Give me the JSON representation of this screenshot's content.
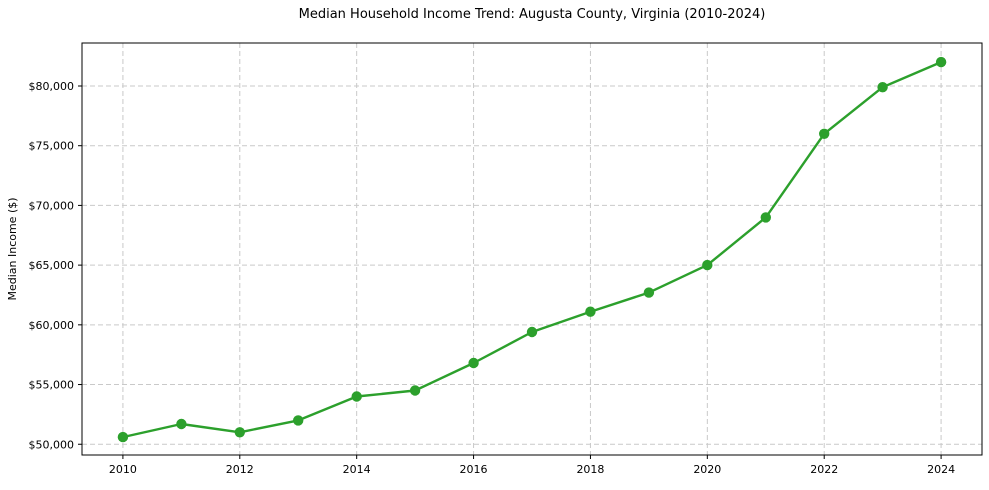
{
  "figure": {
    "background_color": "#ffffff"
  },
  "chart_data": {
    "type": "line",
    "title": "Median Household Income Trend: Augusta County, Virginia (2010-2024)",
    "xlabel": "",
    "ylabel": "Median Income ($)",
    "x": [
      2010,
      2011,
      2012,
      2013,
      2014,
      2015,
      2016,
      2017,
      2018,
      2019,
      2020,
      2021,
      2022,
      2023,
      2024
    ],
    "y": [
      50600,
      51700,
      51000,
      52000,
      54000,
      54500,
      56800,
      59400,
      61100,
      62700,
      65000,
      69000,
      76000,
      79900,
      82000
    ],
    "xlim": [
      2009.3,
      2024.7
    ],
    "ylim": [
      49100,
      83600
    ],
    "xticks": {
      "values": [
        2010,
        2012,
        2014,
        2016,
        2018,
        2020,
        2022,
        2024
      ],
      "labels": [
        "2010",
        "2012",
        "2014",
        "2016",
        "2018",
        "2020",
        "2022",
        "2024"
      ]
    },
    "yticks": {
      "values": [
        50000,
        55000,
        60000,
        65000,
        70000,
        75000,
        80000
      ],
      "labels": [
        "$50,000",
        "$55,000",
        "$60,000",
        "$65,000",
        "$70,000",
        "$75,000",
        "$80,000"
      ]
    },
    "grid": true,
    "grid_style": "dashed",
    "grid_color": "#c9c9c9",
    "axis_color": "#000000",
    "line_color": "#2ca02c",
    "marker": "circle",
    "marker_color": "#2ca02c",
    "legend": null
  }
}
